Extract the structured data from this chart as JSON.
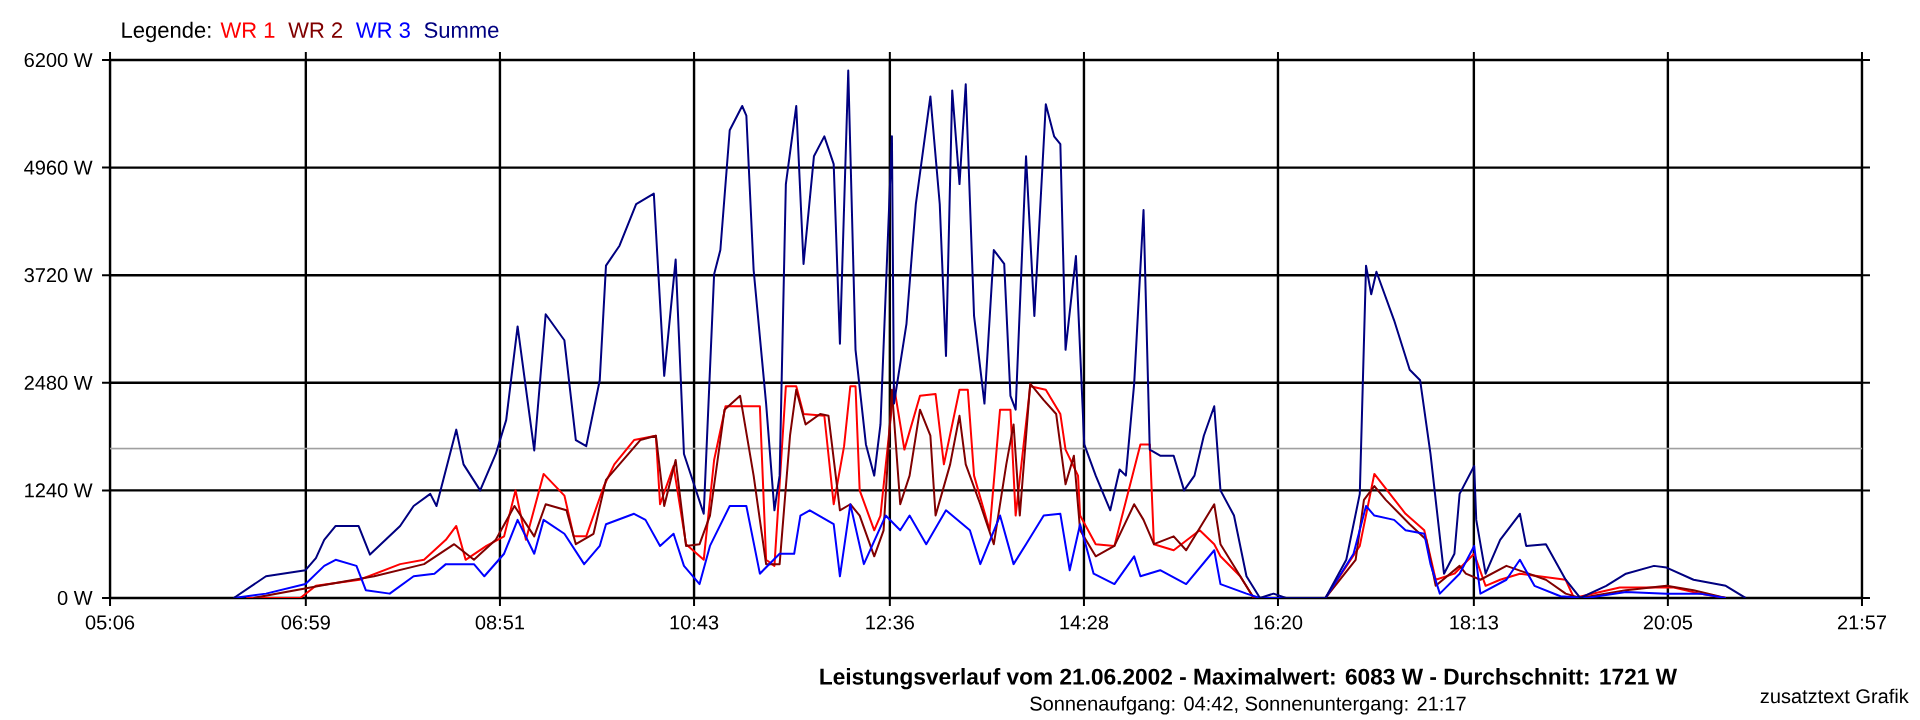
{
  "chart_data": {
    "type": "line",
    "title": "Leistungsverlauf vom 21.06.2002 - Maximalwert: 6083 W - Durchschnitt: 1721 W",
    "subtitle": "Sonnenaufgang: 04:42, Sonnenuntergang: 21:17",
    "annotations": [
      "zusatztext Grafik"
    ],
    "legend_title": "Legende:",
    "legend": "top left",
    "grid": true,
    "xlim": [
      5.1,
      21.95
    ],
    "xticks": [
      {
        "value": 5.1,
        "label": "05:06"
      },
      {
        "value": 6.983,
        "label": "06:59"
      },
      {
        "value": 8.85,
        "label": "08:51"
      },
      {
        "value": 10.717,
        "label": "10:43"
      },
      {
        "value": 12.6,
        "label": "12:36"
      },
      {
        "value": 14.467,
        "label": "14:28"
      },
      {
        "value": 16.333,
        "label": "16:20"
      },
      {
        "value": 18.217,
        "label": "18:13"
      },
      {
        "value": 20.083,
        "label": "20:05"
      },
      {
        "value": 21.95,
        "label": "21:57"
      }
    ],
    "ylim": [
      0,
      6200
    ],
    "yticks": [
      {
        "value": 0,
        "label": "0 W"
      },
      {
        "value": 1240,
        "label": "1240 W"
      },
      {
        "value": 2480,
        "label": "2480 W"
      },
      {
        "value": 3720,
        "label": "3720 W"
      },
      {
        "value": 4960,
        "label": "4960 W"
      },
      {
        "value": 6200,
        "label": "6200 W"
      }
    ],
    "ref_lines": [
      {
        "axis": "y",
        "value": 1721,
        "color": "#a0a0a0"
      }
    ],
    "series": [
      {
        "name": "WR 1",
        "color": "#ff0000",
        "x": [
          6.41,
          6.93,
          7.08,
          7.5,
          7.89,
          8.12,
          8.33,
          8.43,
          8.52,
          8.72,
          8.89,
          9.0,
          9.1,
          9.27,
          9.47,
          9.56,
          9.68,
          9.85,
          9.95,
          10.14,
          10.35,
          10.39,
          10.52,
          10.64,
          10.81,
          10.91,
          11.02,
          11.35,
          11.41,
          11.49,
          11.6,
          11.7,
          11.77,
          11.97,
          12.06,
          12.16,
          12.22,
          12.27,
          12.31,
          12.45,
          12.51,
          12.64,
          12.74,
          12.89,
          13.04,
          13.12,
          13.27,
          13.35,
          13.41,
          13.56,
          13.66,
          13.76,
          13.81,
          13.95,
          14.1,
          14.24,
          14.29,
          14.41,
          14.43,
          14.58,
          14.76,
          15.01,
          15.1,
          15.14,
          15.33,
          15.58,
          15.72,
          15.78,
          15.97,
          16.1,
          16.79,
          17.12,
          17.26,
          17.41,
          17.56,
          17.74,
          17.85,
          18.03,
          18.22,
          18.33,
          18.47,
          18.66,
          19.1,
          19.18,
          19.62,
          20.14,
          20.39,
          20.64
        ],
        "values": [
          0,
          0,
          140,
          210,
          390,
          440,
          670,
          830,
          440,
          600,
          710,
          1240,
          670,
          1430,
          1180,
          710,
          710,
          1290,
          1540,
          1820,
          1870,
          1080,
          1520,
          620,
          440,
          1590,
          2210,
          2210,
          440,
          370,
          2440,
          2440,
          2120,
          2100,
          1080,
          1750,
          2440,
          2440,
          1240,
          780,
          950,
          2440,
          1710,
          2330,
          2350,
          1540,
          2400,
          2400,
          1410,
          780,
          2170,
          2170,
          950,
          2440,
          2400,
          2120,
          1710,
          1410,
          950,
          620,
          600,
          1770,
          1770,
          620,
          550,
          780,
          620,
          480,
          250,
          0,
          0,
          600,
          1430,
          1200,
          970,
          780,
          210,
          280,
          510,
          140,
          210,
          280,
          210,
          0,
          120,
          120,
          50,
          0
        ]
      },
      {
        "name": "WR 2",
        "color": "#800000",
        "x": [
          6.48,
          7.12,
          7.64,
          8.12,
          8.41,
          8.6,
          8.81,
          8.99,
          9.18,
          9.29,
          9.49,
          9.58,
          9.75,
          9.87,
          10.2,
          10.35,
          10.43,
          10.54,
          10.64,
          10.77,
          10.87,
          11.01,
          11.16,
          11.29,
          11.41,
          11.54,
          11.64,
          11.7,
          11.79,
          11.93,
          12.01,
          12.12,
          12.22,
          12.31,
          12.45,
          12.54,
          12.62,
          12.7,
          12.79,
          12.89,
          12.99,
          13.04,
          13.18,
          13.27,
          13.33,
          13.47,
          13.6,
          13.72,
          13.79,
          13.85,
          13.95,
          14.08,
          14.2,
          14.29,
          14.37,
          14.43,
          14.58,
          14.76,
          14.95,
          15.04,
          15.14,
          15.33,
          15.45,
          15.72,
          15.78,
          15.97,
          16.1,
          16.79,
          17.08,
          17.16,
          17.26,
          17.37,
          17.6,
          17.76,
          17.85,
          18.08,
          18.14,
          18.28,
          18.53,
          18.91,
          19.1,
          19.24,
          19.68,
          20.07,
          20.33,
          20.64
        ],
        "values": [
          0,
          140,
          250,
          390,
          620,
          440,
          670,
          1060,
          710,
          1080,
          1010,
          620,
          740,
          1360,
          1820,
          1870,
          1060,
          1590,
          600,
          620,
          950,
          2170,
          2330,
          1410,
          390,
          390,
          1870,
          2400,
          2000,
          2120,
          2100,
          1010,
          1080,
          950,
          480,
          780,
          2400,
          1080,
          1410,
          2170,
          1870,
          950,
          1540,
          2100,
          1540,
          1080,
          620,
          1540,
          2000,
          950,
          2470,
          2280,
          2120,
          1310,
          1640,
          780,
          480,
          600,
          1080,
          900,
          620,
          710,
          550,
          1080,
          620,
          250,
          0,
          0,
          440,
          1130,
          1290,
          1130,
          850,
          670,
          140,
          370,
          280,
          210,
          370,
          210,
          50,
          0,
          90,
          140,
          90,
          0
        ]
      },
      {
        "name": "WR 3",
        "color": "#0000ff",
        "x": [
          6.29,
          6.6,
          6.98,
          7.16,
          7.27,
          7.47,
          7.56,
          7.79,
          8.02,
          8.22,
          8.33,
          8.6,
          8.7,
          8.89,
          9.02,
          9.18,
          9.27,
          9.47,
          9.66,
          9.81,
          9.87,
          10.14,
          10.25,
          10.39,
          10.52,
          10.62,
          10.77,
          10.87,
          11.06,
          11.22,
          11.35,
          11.54,
          11.68,
          11.74,
          11.83,
          12.06,
          12.12,
          12.22,
          12.35,
          12.56,
          12.7,
          12.79,
          12.95,
          13.14,
          13.37,
          13.47,
          13.66,
          13.79,
          13.91,
          14.08,
          14.24,
          14.33,
          14.43,
          14.56,
          14.76,
          14.95,
          15.01,
          15.2,
          15.45,
          15.72,
          15.78,
          16.03,
          16.16,
          16.79,
          17.06,
          17.18,
          17.26,
          17.45,
          17.56,
          17.74,
          17.8,
          17.89,
          18.08,
          18.22,
          18.28,
          18.53,
          18.66,
          18.8,
          19.05,
          19.3,
          19.68,
          20.07,
          20.39,
          20.64
        ],
        "values": [
          0,
          50,
          160,
          370,
          440,
          370,
          90,
          50,
          250,
          280,
          390,
          390,
          250,
          510,
          900,
          510,
          900,
          740,
          390,
          600,
          850,
          970,
          900,
          600,
          740,
          370,
          160,
          600,
          1060,
          1060,
          280,
          510,
          510,
          950,
          1010,
          850,
          250,
          1080,
          390,
          950,
          780,
          950,
          620,
          1010,
          780,
          390,
          950,
          390,
          620,
          950,
          970,
          320,
          850,
          280,
          160,
          480,
          250,
          320,
          160,
          550,
          160,
          50,
          0,
          0,
          510,
          1060,
          950,
          900,
          780,
          740,
          390,
          50,
          280,
          600,
          50,
          210,
          440,
          140,
          20,
          0,
          70,
          50,
          50,
          0
        ]
      },
      {
        "name": "Summe",
        "color": "#000080",
        "x": [
          6.29,
          6.6,
          6.98,
          7.08,
          7.16,
          7.27,
          7.49,
          7.6,
          7.89,
          8.02,
          8.18,
          8.24,
          8.43,
          8.5,
          8.66,
          8.81,
          8.91,
          9.02,
          9.18,
          9.29,
          9.47,
          9.58,
          9.68,
          9.81,
          9.87,
          10.0,
          10.16,
          10.33,
          10.43,
          10.54,
          10.62,
          10.81,
          10.91,
          10.97,
          11.06,
          11.18,
          11.22,
          11.29,
          11.41,
          11.49,
          11.54,
          11.6,
          11.7,
          11.77,
          11.87,
          11.97,
          12.06,
          12.12,
          12.2,
          12.27,
          12.37,
          12.45,
          12.51,
          12.62,
          12.64,
          12.76,
          12.85,
          12.99,
          13.08,
          13.14,
          13.2,
          13.27,
          13.33,
          13.41,
          13.51,
          13.6,
          13.7,
          13.76,
          13.81,
          13.91,
          13.99,
          14.1,
          14.18,
          14.24,
          14.29,
          14.39,
          14.47,
          14.58,
          14.72,
          14.81,
          14.87,
          14.95,
          15.04,
          15.1,
          15.2,
          15.33,
          15.43,
          15.53,
          15.62,
          15.72,
          15.78,
          15.91,
          16.03,
          16.16,
          16.29,
          16.41,
          16.79,
          16.99,
          17.12,
          17.18,
          17.23,
          17.28,
          17.45,
          17.6,
          17.7,
          17.8,
          17.93,
          18.03,
          18.08,
          18.22,
          18.24,
          18.33,
          18.47,
          18.66,
          18.72,
          18.91,
          19.1,
          19.24,
          19.49,
          19.68,
          19.95,
          20.07,
          20.33,
          20.64,
          20.83
        ],
        "values": [
          0,
          250,
          320,
          460,
          670,
          830,
          830,
          500,
          830,
          1060,
          1200,
          1060,
          1940,
          1540,
          1240,
          1660,
          2050,
          3130,
          1700,
          3270,
          2970,
          1820,
          1750,
          2510,
          3830,
          4060,
          4540,
          4660,
          2560,
          3900,
          1660,
          970,
          3730,
          4010,
          5390,
          5670,
          5560,
          3780,
          2240,
          1010,
          1410,
          4770,
          5670,
          3850,
          5090,
          5320,
          5000,
          2930,
          6080,
          2860,
          1770,
          1410,
          2000,
          5320,
          2240,
          3160,
          4540,
          5780,
          4540,
          2790,
          5850,
          4770,
          5920,
          3250,
          2240,
          4010,
          3850,
          2330,
          2170,
          5090,
          3250,
          5690,
          5320,
          5230,
          2860,
          3940,
          1770,
          1410,
          1010,
          1480,
          1410,
          2470,
          4470,
          1710,
          1640,
          1640,
          1240,
          1410,
          1870,
          2210,
          1240,
          950,
          250,
          0,
          50,
          0,
          0,
          440,
          1200,
          3830,
          3500,
          3760,
          3200,
          2630,
          2510,
          1660,
          280,
          510,
          1200,
          1520,
          900,
          280,
          670,
          970,
          600,
          620,
          210,
          0,
          140,
          280,
          370,
          350,
          210,
          140,
          0
        ]
      }
    ]
  }
}
